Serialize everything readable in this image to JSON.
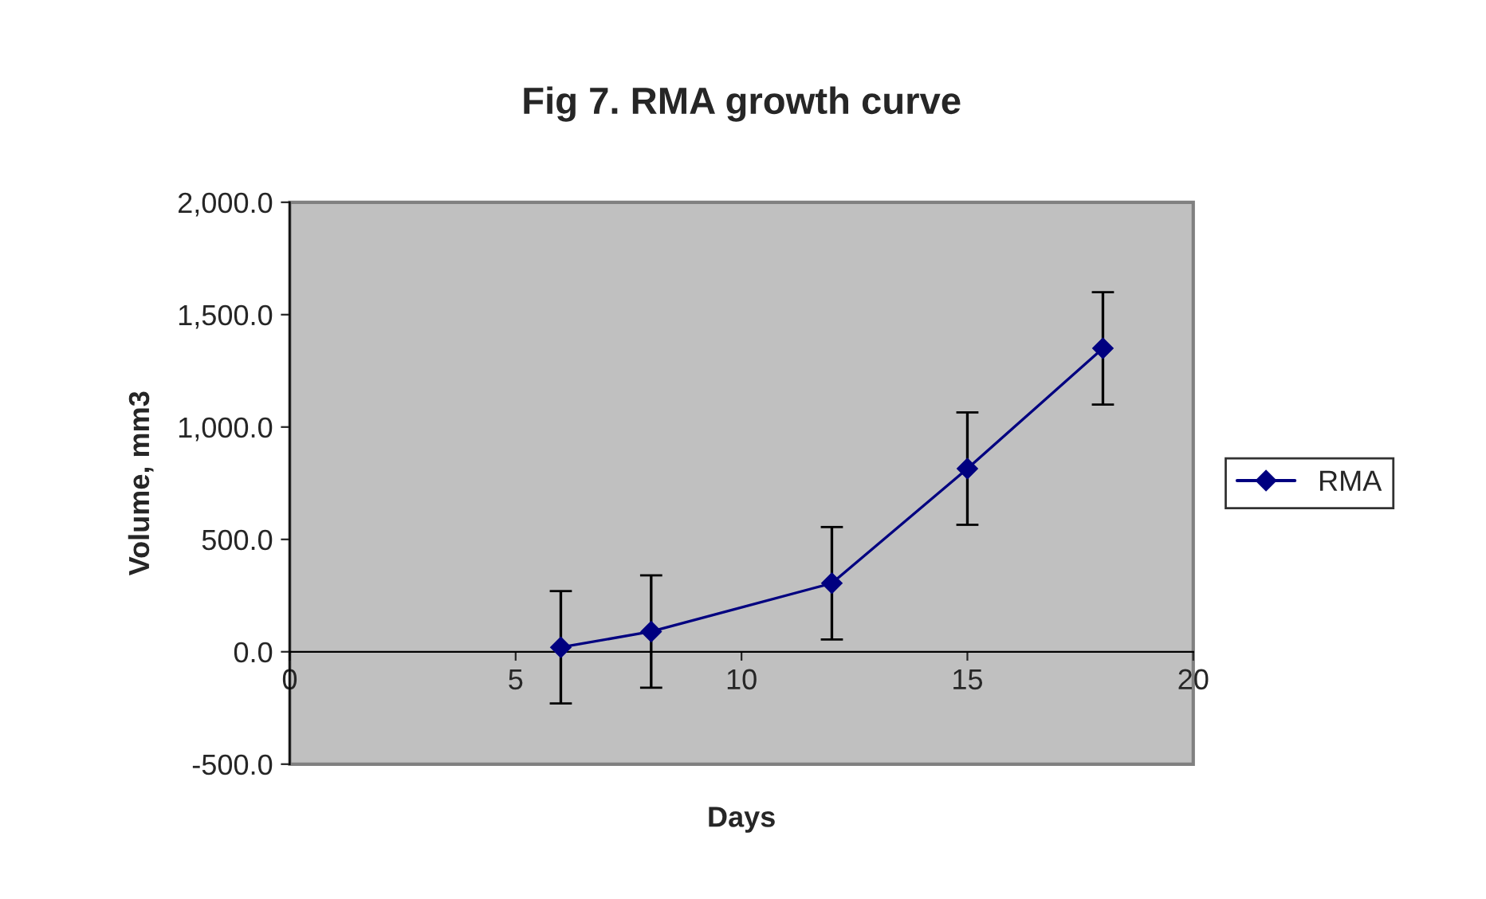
{
  "chart_data": {
    "type": "line",
    "title": "Fig 7. RMA growth curve",
    "xlabel": "Days",
    "ylabel": "Volume, mm3",
    "x": [
      6,
      8,
      12,
      15,
      18
    ],
    "series": [
      {
        "name": "RMA",
        "color": "#000080",
        "values": [
          20,
          90,
          305,
          815,
          1350
        ],
        "errors": [
          250,
          250,
          250,
          250,
          250
        ]
      }
    ],
    "xlim": [
      0,
      20
    ],
    "xticks": [
      0,
      5,
      10,
      15,
      20
    ],
    "ylim": [
      -500,
      2000
    ],
    "yticks": [
      {
        "value": -500,
        "label": "-500.0"
      },
      {
        "value": 0,
        "label": "0.0"
      },
      {
        "value": 500,
        "label": "500.0"
      },
      {
        "value": 1000,
        "label": "1,000.0"
      },
      {
        "value": 1500,
        "label": "1,500.0"
      },
      {
        "value": 2000,
        "label": "2,000.0"
      }
    ],
    "marker": "diamond",
    "line_style": "solid",
    "grid": false,
    "legend": "right"
  }
}
